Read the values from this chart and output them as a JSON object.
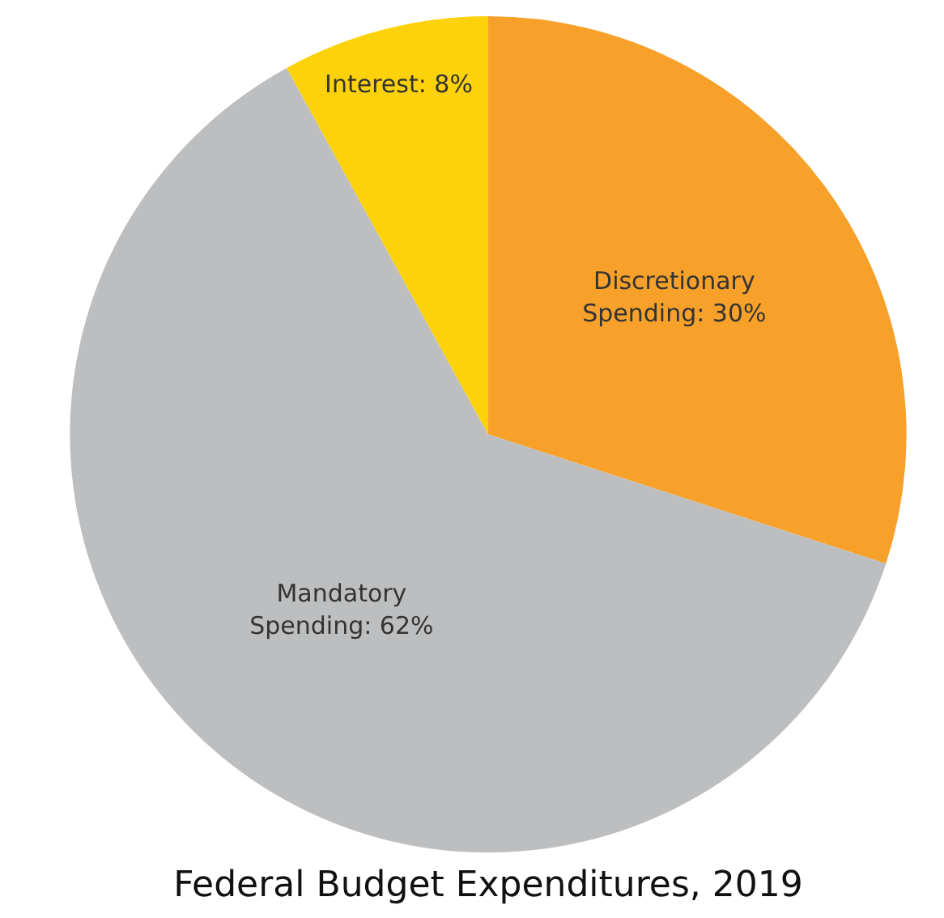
{
  "chart_data": {
    "type": "pie",
    "title": "Federal Budget Expenditures, 2019",
    "categories": [
      "Discretionary Spending",
      "Mandatory Spending",
      "Interest"
    ],
    "values": [
      30,
      62,
      8
    ],
    "colors": [
      "#f7a12a",
      "#bdbebf",
      "#fdd20a"
    ],
    "value_labels": [
      "30%",
      "62%",
      "8%"
    ],
    "legend": false
  }
}
